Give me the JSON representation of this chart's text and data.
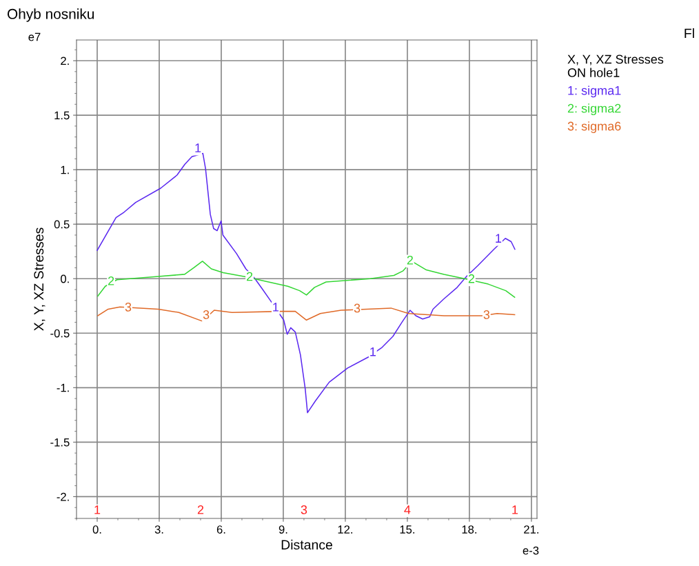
{
  "chart_data": {
    "type": "line",
    "title": "Ohyb nosniku",
    "xlabel": "Distance",
    "ylabel": "X, Y, XZ Stresses",
    "legend_title": "X, Y, XZ Stresses\nON hole1",
    "legend": "right",
    "grid": true,
    "marker": "none",
    "line_style": "solid",
    "xlim": [
      -1.0,
      21.27
    ],
    "ylim": [
      -2.2,
      2.19
    ],
    "xticks": [
      {
        "value": 0,
        "label": "0."
      },
      {
        "value": 3,
        "label": "3."
      },
      {
        "value": 6,
        "label": "6."
      },
      {
        "value": 9,
        "label": "9."
      },
      {
        "value": 12,
        "label": "12."
      },
      {
        "value": 15,
        "label": "15."
      },
      {
        "value": 18,
        "label": "18."
      },
      {
        "value": 21,
        "label": "21."
      }
    ],
    "yticks": [
      {
        "value": -2,
        "label": "-2."
      },
      {
        "value": -1.5,
        "label": "-1.5"
      },
      {
        "value": -1,
        "label": "-1."
      },
      {
        "value": -0.5,
        "label": "-0.5"
      },
      {
        "value": 0,
        "label": "0."
      },
      {
        "value": 0.5,
        "label": "0.5"
      },
      {
        "value": 1,
        "label": "1."
      },
      {
        "value": 1.5,
        "label": "1.5"
      },
      {
        "value": 2,
        "label": "2."
      }
    ],
    "series": [
      {
        "name": "1: sigma1",
        "color": "#5a28f0",
        "x": [
          0,
          0.91,
          1.3,
          1.86,
          3.07,
          3.86,
          4.24,
          4.58,
          5.11,
          5.24,
          5.47,
          5.63,
          5.8,
          5.99,
          6.08,
          6.74,
          7.19,
          7.63,
          7.97,
          8.41,
          9.02,
          9.19,
          9.36,
          9.58,
          9.83,
          10.06,
          10.17,
          10.56,
          11.22,
          12.11,
          13.11,
          13.78,
          14.3,
          14.74,
          15.13,
          15.41,
          15.74,
          16.08,
          16.24,
          16.74,
          17.41,
          17.86,
          18.41,
          19.19,
          19.74,
          20.02,
          20.2
        ],
        "values": [
          0.26,
          0.56,
          0.61,
          0.7,
          0.83,
          0.95,
          1.05,
          1.12,
          1.15,
          1.01,
          0.59,
          0.46,
          0.44,
          0.53,
          0.4,
          0.23,
          0.09,
          0.0,
          -0.09,
          -0.21,
          -0.38,
          -0.51,
          -0.45,
          -0.49,
          -0.7,
          -1.01,
          -1.23,
          -1.12,
          -0.95,
          -0.82,
          -0.72,
          -0.63,
          -0.53,
          -0.4,
          -0.29,
          -0.34,
          -0.37,
          -0.35,
          -0.28,
          -0.19,
          -0.08,
          0.02,
          0.12,
          0.27,
          0.37,
          0.34,
          0.27
        ]
      },
      {
        "name": "2: sigma2",
        "color": "#33d633",
        "x": [
          0.03,
          0.39,
          0.96,
          2.96,
          4.23,
          4.67,
          5.09,
          5.52,
          6.09,
          7.23,
          7.8,
          9.22,
          9.79,
          10.12,
          10.51,
          11.07,
          13.21,
          14.35,
          14.78,
          15.21,
          15.92,
          16.77,
          17.77,
          18.91,
          19.76,
          20.19
        ],
        "values": [
          -0.16,
          -0.07,
          -0.01,
          0.02,
          0.04,
          0.1,
          0.16,
          0.09,
          0.055,
          0.015,
          -0.01,
          -0.07,
          -0.11,
          -0.15,
          -0.08,
          -0.03,
          0.0,
          0.03,
          0.07,
          0.16,
          0.08,
          0.04,
          0.0,
          -0.05,
          -0.11,
          -0.17
        ]
      },
      {
        "name": "3: sigma6",
        "color": "#e06a28",
        "x": [
          0.03,
          0.53,
          1.1,
          2.96,
          3.95,
          5.09,
          5.66,
          6.52,
          8.94,
          9.58,
          10.12,
          10.79,
          11.79,
          14.21,
          15.06,
          16.77,
          18.62,
          19.34,
          20.19
        ],
        "values": [
          -0.34,
          -0.28,
          -0.26,
          -0.28,
          -0.31,
          -0.39,
          -0.29,
          -0.31,
          -0.3,
          -0.3,
          -0.38,
          -0.32,
          -0.29,
          -0.27,
          -0.32,
          -0.34,
          -0.34,
          -0.32,
          -0.33
        ]
      }
    ],
    "annotations": [
      "e7",
      "e-3",
      "Fl",
      {
        "text": "1",
        "x": 4.87,
        "y": 1.19
      },
      {
        "text": "1",
        "x": 8.63,
        "y": -0.27
      },
      {
        "text": "1",
        "x": 13.33,
        "y": -0.68
      },
      {
        "text": "1",
        "x": 19.4,
        "y": 0.36
      },
      {
        "text": "2",
        "x": 0.67,
        "y": -0.03
      },
      {
        "text": "2",
        "x": 7.37,
        "y": 0.01
      },
      {
        "text": "2",
        "x": 15.13,
        "y": 0.16
      },
      {
        "text": "2",
        "x": 18.1,
        "y": -0.01
      },
      {
        "text": "3",
        "x": 1.5,
        "y": -0.27
      },
      {
        "text": "3",
        "x": 5.27,
        "y": -0.34
      },
      {
        "text": "3",
        "x": 12.57,
        "y": -0.28
      },
      {
        "text": "3",
        "x": 18.83,
        "y": -0.34
      },
      {
        "text": "1",
        "x": 0,
        "y": -2.13
      },
      {
        "text": "2",
        "x": 5,
        "y": -2.13
      },
      {
        "text": "3",
        "x": 10,
        "y": -2.13
      },
      {
        "text": "4",
        "x": 15,
        "y": -2.13
      },
      {
        "text": "1",
        "x": 20.2,
        "y": -2.13
      }
    ]
  }
}
